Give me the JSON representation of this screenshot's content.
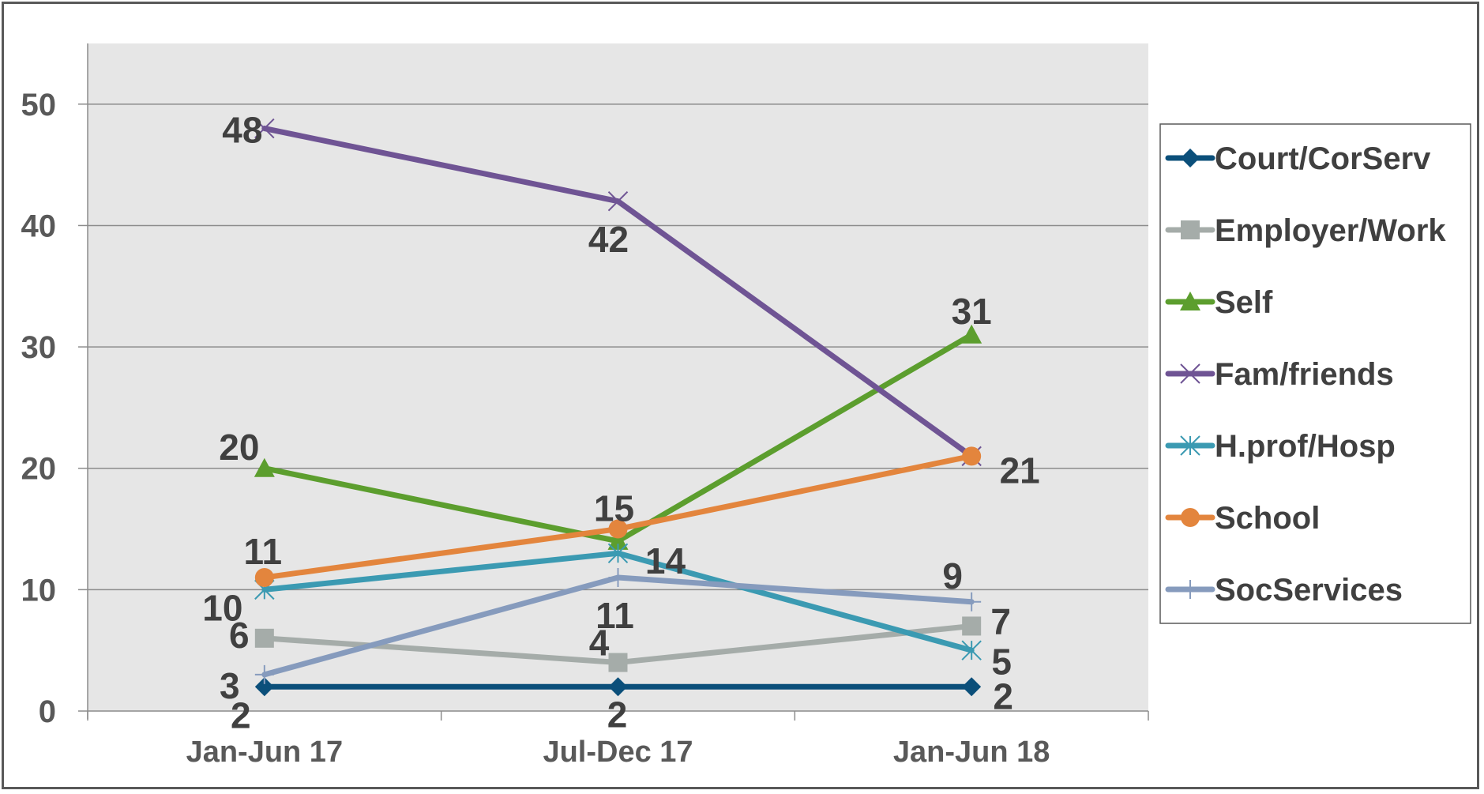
{
  "chart_data": {
    "type": "line",
    "categories": [
      "Jan-Jun 17",
      "Jul-Dec 17",
      "Jan-Jun 18"
    ],
    "ylim": [
      0,
      55
    ],
    "yticks": [
      0,
      10,
      20,
      30,
      40,
      50
    ],
    "grid": true,
    "legend_position": "right",
    "series": [
      {
        "name": "Court/CorServ",
        "values": [
          2,
          2,
          2
        ],
        "color": "#0b4f7a",
        "marker": "diamond"
      },
      {
        "name": "Employer/Work",
        "values": [
          6,
          4,
          7
        ],
        "color": "#a5aca9",
        "marker": "square"
      },
      {
        "name": "Self",
        "values": [
          20,
          14,
          31
        ],
        "color": "#5c9e2e",
        "marker": "triangle"
      },
      {
        "name": "Fam/friends",
        "values": [
          48,
          42,
          21
        ],
        "color": "#6f5494",
        "marker": "x"
      },
      {
        "name": "H.prof/Hosp",
        "values": [
          10,
          13,
          5
        ],
        "color": "#3b9ab2",
        "marker": "star"
      },
      {
        "name": "School",
        "values": [
          11,
          15,
          21
        ],
        "color": "#e3853d",
        "marker": "circle"
      },
      {
        "name": "SocServices",
        "values": [
          3,
          11,
          9
        ],
        "color": "#869bbd",
        "marker": "plus"
      }
    ],
    "data_labels": [
      {
        "text": "2",
        "series": 0,
        "point": 0
      },
      {
        "text": "2",
        "series": 0,
        "point": 1
      },
      {
        "text": "2",
        "series": 0,
        "point": 2
      },
      {
        "text": "6",
        "series": 1,
        "point": 0
      },
      {
        "text": "4",
        "series": 1,
        "point": 1
      },
      {
        "text": "7",
        "series": 1,
        "point": 2
      },
      {
        "text": "20",
        "series": 2,
        "point": 0
      },
      {
        "text": "14",
        "series": 2,
        "point": 1
      },
      {
        "text": "31",
        "series": 2,
        "point": 2
      },
      {
        "text": "48",
        "series": 3,
        "point": 0
      },
      {
        "text": "42",
        "series": 3,
        "point": 1
      },
      {
        "text": "21",
        "series": 3,
        "point": 2
      },
      {
        "text": "10",
        "series": 4,
        "point": 0
      },
      {
        "text": "5",
        "series": 4,
        "point": 2
      },
      {
        "text": "11",
        "series": 5,
        "point": 0
      },
      {
        "text": "15",
        "series": 5,
        "point": 1
      },
      {
        "text": "3",
        "series": 6,
        "point": 0
      },
      {
        "text": "11",
        "series": 6,
        "point": 1
      },
      {
        "text": "9",
        "series": 6,
        "point": 2
      }
    ]
  }
}
